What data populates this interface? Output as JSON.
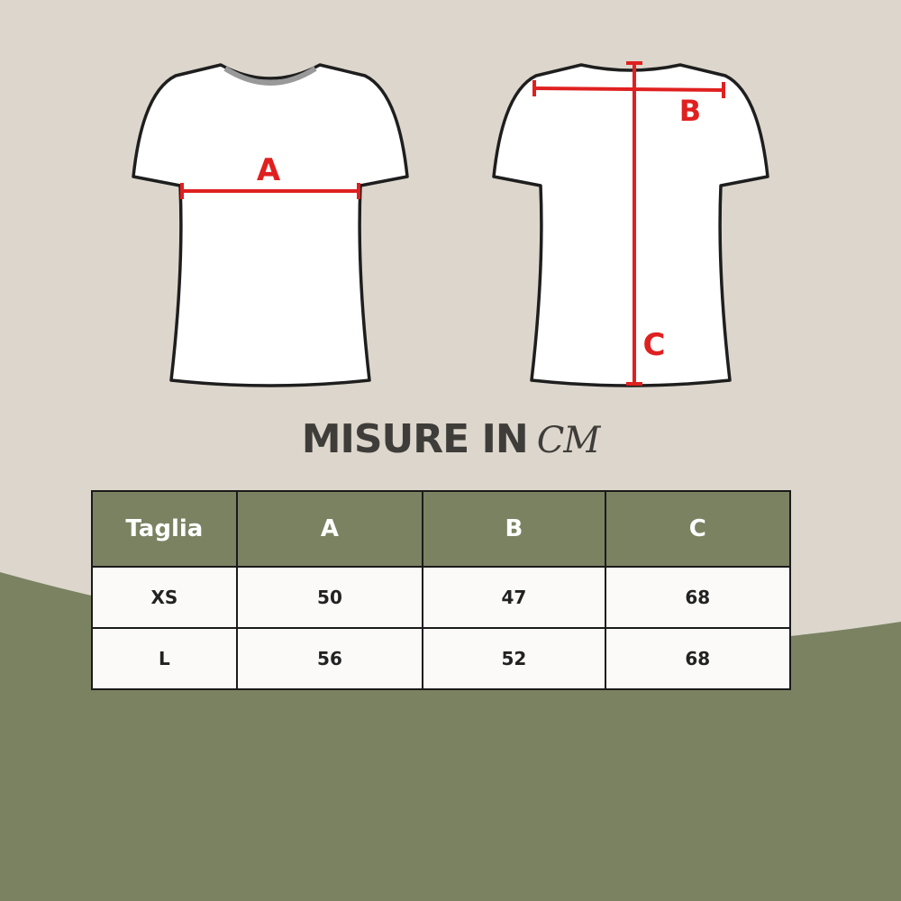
{
  "title": {
    "main": "MISURE IN",
    "unit": "CM"
  },
  "diagram": {
    "front_label": "A",
    "back_labels": [
      "B",
      "C"
    ],
    "measure_color": "#e02020"
  },
  "colors": {
    "background": "#dcd6cc",
    "accent": "#7a8262",
    "text": "#3f3d39"
  },
  "table": {
    "headers": [
      "Taglia",
      "A",
      "B",
      "C"
    ],
    "rows": [
      [
        "XS",
        "50",
        "47",
        "68"
      ],
      [
        "L",
        "56",
        "52",
        "68"
      ]
    ]
  }
}
